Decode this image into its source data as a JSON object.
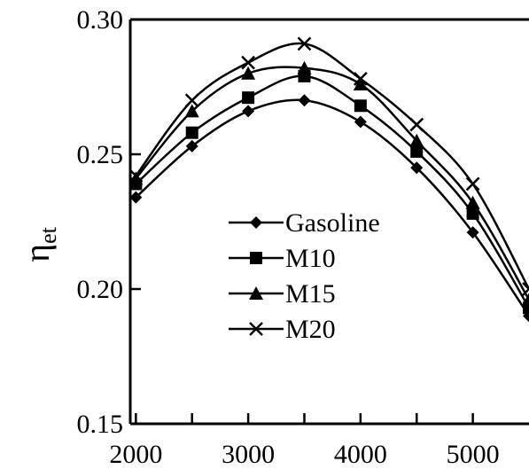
{
  "chart_data": {
    "type": "line",
    "title": "",
    "xlabel": "",
    "ylabel": {
      "main": "η",
      "sub": "et"
    },
    "xlim": [
      1950,
      5500
    ],
    "ylim": [
      0.15,
      0.3
    ],
    "x_ticks": [
      "2000",
      "3000",
      "4000",
      "5000"
    ],
    "x_tick_values": [
      2000,
      3000,
      4000,
      5000
    ],
    "x_minor_ticks": [
      2500,
      3500,
      4500
    ],
    "y_ticks": [
      "0.15",
      "0.20",
      "0.25",
      "0.30"
    ],
    "y_tick_values": [
      0.15,
      0.2,
      0.25,
      0.3
    ],
    "grid": false,
    "legend_position": "center-left",
    "x": [
      2000,
      2500,
      3000,
      3500,
      4000,
      4500,
      5000,
      5500
    ],
    "series": [
      {
        "name": "Gasoline",
        "marker": "diamond",
        "values": [
          0.234,
          0.253,
          0.266,
          0.27,
          0.262,
          0.245,
          0.221,
          0.19
        ]
      },
      {
        "name": "M10",
        "marker": "square",
        "values": [
          0.239,
          0.258,
          0.271,
          0.279,
          0.268,
          0.251,
          0.228,
          0.193
        ]
      },
      {
        "name": "M15",
        "marker": "triangle",
        "values": [
          0.241,
          0.266,
          0.28,
          0.282,
          0.276,
          0.255,
          0.232,
          0.196
        ]
      },
      {
        "name": "M20",
        "marker": "x",
        "values": [
          0.242,
          0.27,
          0.284,
          0.291,
          0.278,
          0.261,
          0.239,
          0.2
        ]
      }
    ]
  }
}
